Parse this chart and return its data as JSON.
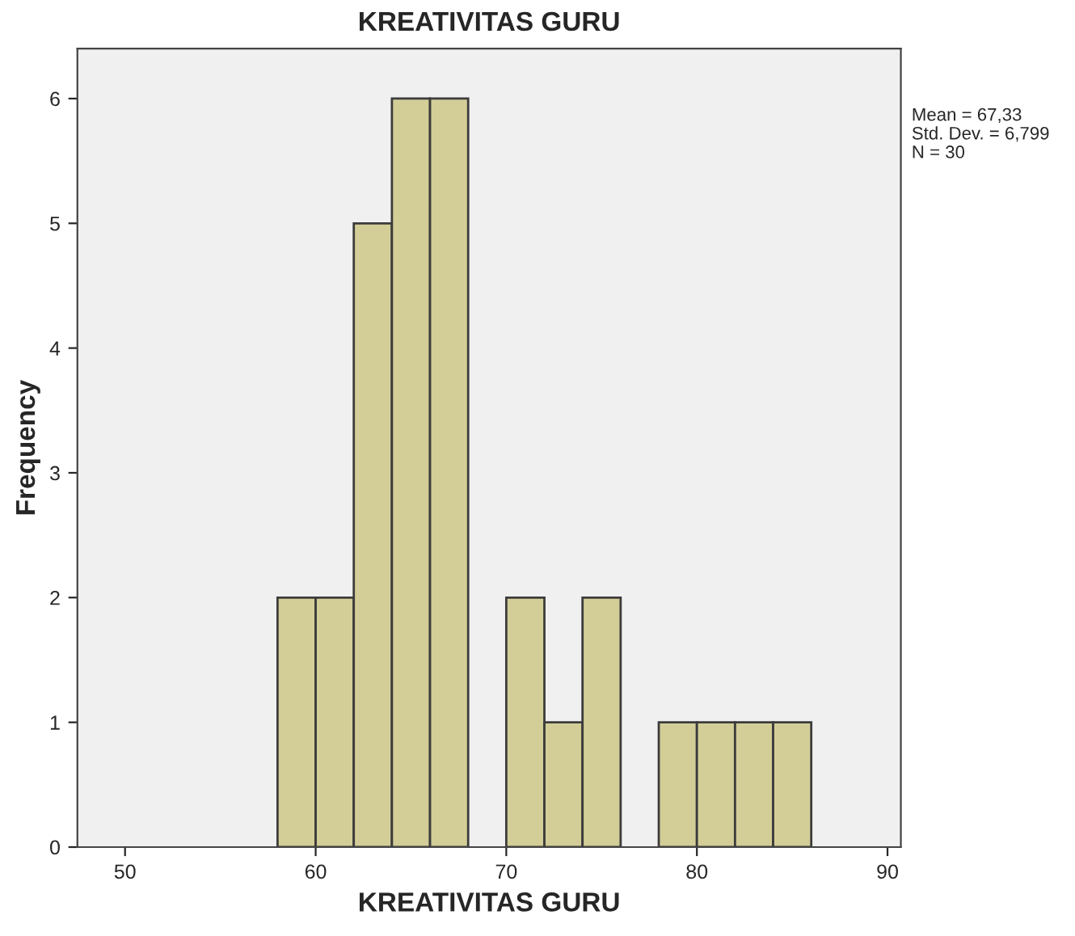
{
  "chart_data": {
    "type": "histogram",
    "title": "KREATIVITAS GURU",
    "xlabel": "KREATIVITAS GURU",
    "ylabel": "Frequency",
    "bins": [
      58,
      60,
      62,
      64,
      66,
      68,
      70,
      72,
      74,
      76,
      78,
      80,
      82,
      84,
      86
    ],
    "values": [
      2,
      2,
      5,
      6,
      6,
      0,
      2,
      1,
      2,
      0,
      1,
      1,
      1,
      1
    ],
    "color": "#d3ce97",
    "xlim": [
      47.5,
      90.7
    ],
    "xticks": [
      50,
      60,
      70,
      80,
      90
    ],
    "ylim": [
      0,
      6.4
    ],
    "yticks": [
      0,
      1,
      2,
      3,
      4,
      5,
      6
    ],
    "grid": false,
    "legend": false,
    "annotations": [
      "Mean = 67,33",
      "Std. Dev. = 6,799",
      "N = 30"
    ]
  }
}
